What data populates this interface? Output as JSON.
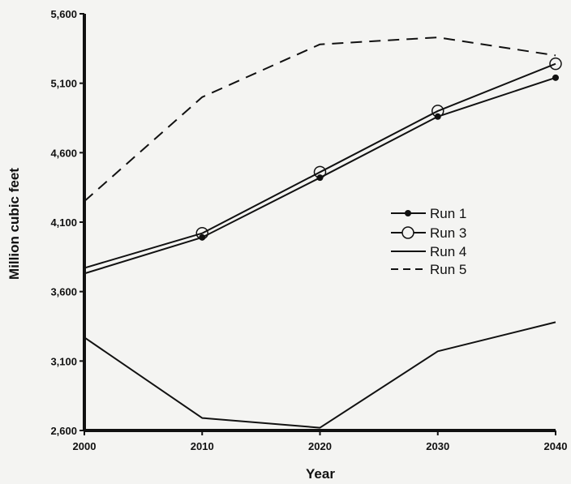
{
  "chart_data": {
    "type": "line",
    "xlabel": "Year",
    "ylabel": "Million cubic feet",
    "xlim": [
      2000,
      2040
    ],
    "ylim": [
      2600,
      5600
    ],
    "x_ticks": [
      "2000",
      "2010",
      "2020",
      "2030",
      "2040"
    ],
    "y_ticks": [
      "2,600",
      "3,100",
      "3,600",
      "4,100",
      "4,600",
      "5,100",
      "5,600"
    ],
    "grid": false,
    "legend_position": "right-middle",
    "series": [
      {
        "name": "Run 1",
        "style": "solid-filled-dot",
        "x": [
          2000,
          2010,
          2020,
          2030,
          2040
        ],
        "y": [
          3730,
          3990,
          4420,
          4860,
          5140
        ]
      },
      {
        "name": "Run 3",
        "style": "solid-open-circle",
        "x": [
          2000,
          2010,
          2020,
          2030,
          2040
        ],
        "y": [
          3770,
          4020,
          4460,
          4900,
          5240
        ]
      },
      {
        "name": "Run 4",
        "style": "solid",
        "x": [
          2000,
          2010,
          2020,
          2030,
          2040
        ],
        "y": [
          3270,
          2690,
          2620,
          3170,
          3380
        ]
      },
      {
        "name": "Run 5",
        "style": "dashed",
        "x": [
          2000,
          2010,
          2020,
          2030,
          2040
        ],
        "y": [
          4250,
          5000,
          5380,
          5430,
          5300
        ]
      }
    ]
  }
}
